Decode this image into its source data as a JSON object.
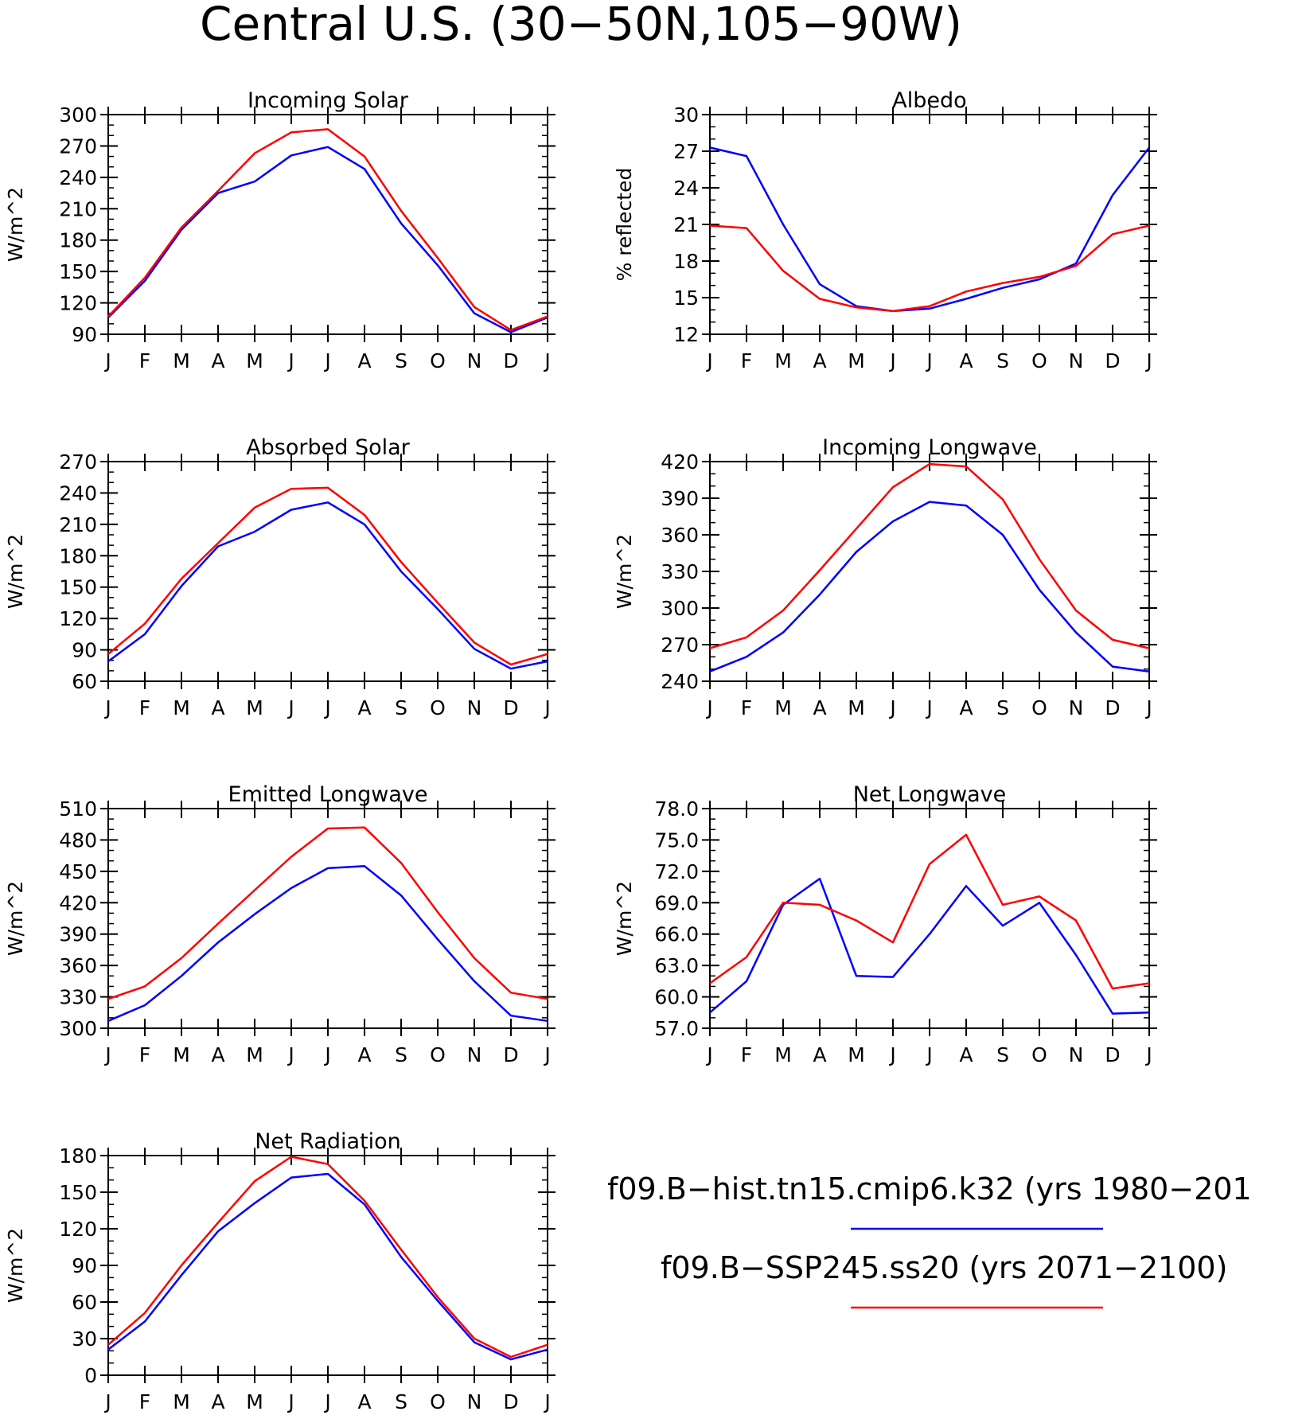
{
  "figure_title": "Central U.S. (30−50N,105−90W)",
  "legend": {
    "entries": [
      {
        "label": "f09.B−hist.tn15.cmip6.k32 (yrs 1980−201",
        "color": "#0000ff"
      },
      {
        "label": "f09.B−SSP245.ss20 (yrs 2071−2100)",
        "color": "#ff0000"
      }
    ]
  },
  "chart_data": [
    {
      "type": "line",
      "title": "Incoming Solar",
      "ylabel": "W/m^2",
      "x_tick_labels": [
        "J",
        "F",
        "M",
        "A",
        "M",
        "J",
        "J",
        "A",
        "S",
        "O",
        "N",
        "D",
        "J"
      ],
      "y_ticks": [
        "90",
        "120",
        "150",
        "180",
        "210",
        "240",
        "270",
        "300"
      ],
      "ylim": [
        90,
        300
      ],
      "series": [
        {
          "color": "#0000ff",
          "values": [
            106,
            141,
            190,
            225,
            236,
            261,
            269,
            248,
            196,
            156,
            110,
            92,
            106
          ]
        },
        {
          "color": "#ff0000",
          "values": [
            107,
            144,
            192,
            227,
            263,
            283,
            286,
            260,
            208,
            163,
            116,
            94,
            107
          ]
        }
      ]
    },
    {
      "type": "line",
      "title": "Albedo",
      "ylabel": "% reflected",
      "x_tick_labels": [
        "J",
        "F",
        "M",
        "A",
        "M",
        "J",
        "J",
        "A",
        "S",
        "O",
        "N",
        "D",
        "J"
      ],
      "y_ticks": [
        "12",
        "15",
        "18",
        "21",
        "24",
        "27",
        "30"
      ],
      "ylim": [
        12,
        30
      ],
      "series": [
        {
          "color": "#0000ff",
          "values": [
            27.3,
            26.6,
            21.0,
            16.1,
            14.3,
            13.9,
            14.1,
            14.9,
            15.8,
            16.5,
            17.8,
            23.4,
            27.3
          ]
        },
        {
          "color": "#ff0000",
          "values": [
            20.9,
            20.7,
            17.2,
            14.9,
            14.2,
            13.9,
            14.3,
            15.5,
            16.2,
            16.7,
            17.6,
            20.2,
            20.9
          ]
        }
      ]
    },
    {
      "type": "line",
      "title": "Absorbed Solar",
      "ylabel": "W/m^2",
      "x_tick_labels": [
        "J",
        "F",
        "M",
        "A",
        "M",
        "J",
        "J",
        "A",
        "S",
        "O",
        "N",
        "D",
        "J"
      ],
      "y_ticks": [
        "60",
        "90",
        "120",
        "150",
        "180",
        "210",
        "240",
        "270"
      ],
      "ylim": [
        60,
        270
      ],
      "series": [
        {
          "color": "#0000ff",
          "values": [
            79,
            105,
            151,
            189,
            203,
            224,
            231,
            210,
            165,
            129,
            91,
            72,
            79
          ]
        },
        {
          "color": "#ff0000",
          "values": [
            86,
            115,
            158,
            192,
            226,
            244,
            245,
            219,
            174,
            135,
            97,
            76,
            86
          ]
        }
      ]
    },
    {
      "type": "line",
      "title": "Incoming Longwave",
      "ylabel": "W/m^2",
      "x_tick_labels": [
        "J",
        "F",
        "M",
        "A",
        "M",
        "J",
        "J",
        "A",
        "S",
        "O",
        "N",
        "D",
        "J"
      ],
      "y_ticks": [
        "240",
        "270",
        "300",
        "330",
        "360",
        "390",
        "420"
      ],
      "ylim": [
        240,
        420
      ],
      "series": [
        {
          "color": "#0000ff",
          "values": [
            248,
            260,
            280,
            311,
            346,
            371,
            387,
            384,
            360,
            315,
            280,
            252,
            248
          ]
        },
        {
          "color": "#ff0000",
          "values": [
            267,
            276,
            298,
            331,
            365,
            399,
            418,
            416,
            389,
            340,
            298,
            274,
            267
          ]
        }
      ]
    },
    {
      "type": "line",
      "title": "Emitted Longwave",
      "ylabel": "W/m^2",
      "x_tick_labels": [
        "J",
        "F",
        "M",
        "A",
        "M",
        "J",
        "J",
        "A",
        "S",
        "O",
        "N",
        "D",
        "J"
      ],
      "y_ticks": [
        "300",
        "330",
        "360",
        "390",
        "420",
        "450",
        "480",
        "510"
      ],
      "ylim": [
        300,
        510
      ],
      "series": [
        {
          "color": "#0000ff",
          "values": [
            307,
            322,
            350,
            382,
            409,
            434,
            453,
            455,
            427,
            385,
            345,
            312,
            307
          ]
        },
        {
          "color": "#ff0000",
          "values": [
            328,
            340,
            367,
            400,
            432,
            464,
            491,
            492,
            458,
            411,
            367,
            334,
            328
          ]
        }
      ]
    },
    {
      "type": "line",
      "title": "Net Longwave",
      "ylabel": "W/m^2",
      "x_tick_labels": [
        "J",
        "F",
        "M",
        "A",
        "M",
        "J",
        "J",
        "A",
        "S",
        "O",
        "N",
        "D",
        "J"
      ],
      "y_ticks": [
        "57.0",
        "60.0",
        "63.0",
        "66.0",
        "69.0",
        "72.0",
        "75.0",
        "78.0"
      ],
      "ylim": [
        57,
        78
      ],
      "series": [
        {
          "color": "#0000ff",
          "values": [
            58.5,
            61.5,
            68.8,
            71.3,
            62.0,
            61.9,
            66.0,
            70.6,
            66.8,
            69.0,
            64.0,
            58.4,
            58.5
          ]
        },
        {
          "color": "#ff0000",
          "values": [
            61.3,
            63.8,
            69.0,
            68.8,
            67.3,
            65.2,
            72.7,
            75.5,
            68.8,
            69.6,
            67.3,
            60.8,
            61.3
          ]
        }
      ]
    },
    {
      "type": "line",
      "title": "Net Radiation",
      "ylabel": "W/m^2",
      "x_tick_labels": [
        "J",
        "F",
        "M",
        "A",
        "M",
        "J",
        "J",
        "A",
        "S",
        "O",
        "N",
        "D",
        "J"
      ],
      "y_ticks": [
        "0",
        "30",
        "60",
        "90",
        "120",
        "150",
        "180"
      ],
      "ylim": [
        0,
        180
      ],
      "series": [
        {
          "color": "#0000ff",
          "values": [
            21,
            44,
            82,
            118,
            141,
            162,
            165,
            140,
            97,
            61,
            27,
            13,
            21
          ]
        },
        {
          "color": "#ff0000",
          "values": [
            25,
            51,
            90,
            125,
            159,
            179,
            173,
            143,
            103,
            64,
            30,
            15,
            25
          ]
        }
      ]
    }
  ]
}
